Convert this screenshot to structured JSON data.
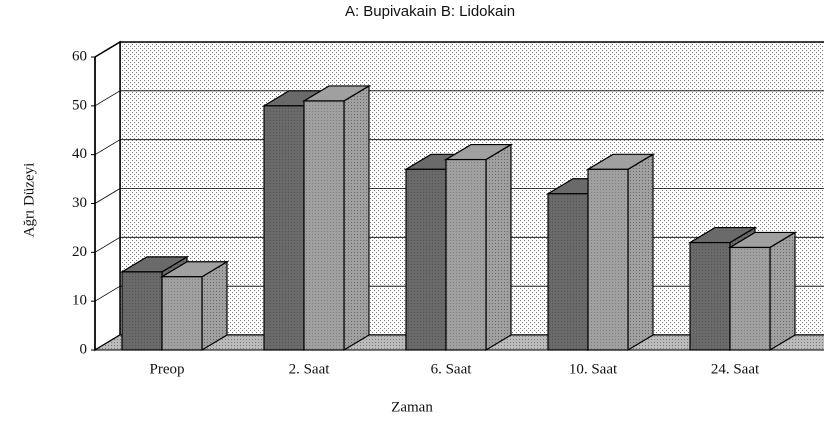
{
  "chart_data": {
    "type": "bar3d",
    "title": "A: Bupivakain  B: Lidokain",
    "x_label": "Zaman",
    "y_label": "Ağrı Düzeyi",
    "categories": [
      "Preop",
      "2. Saat",
      "6. Saat",
      "10. Saat",
      "24. Saat"
    ],
    "series": [
      {
        "color": "#6a6a6a",
        "values": [
          16,
          50,
          37,
          32,
          22
        ]
      },
      {
        "color": "#a0a0a0",
        "values": [
          15,
          51,
          39,
          37,
          21
        ]
      }
    ],
    "ylim": [
      0,
      60
    ],
    "yticks": [
      0,
      10,
      20,
      30,
      40,
      50,
      60
    ],
    "grid": true
  }
}
